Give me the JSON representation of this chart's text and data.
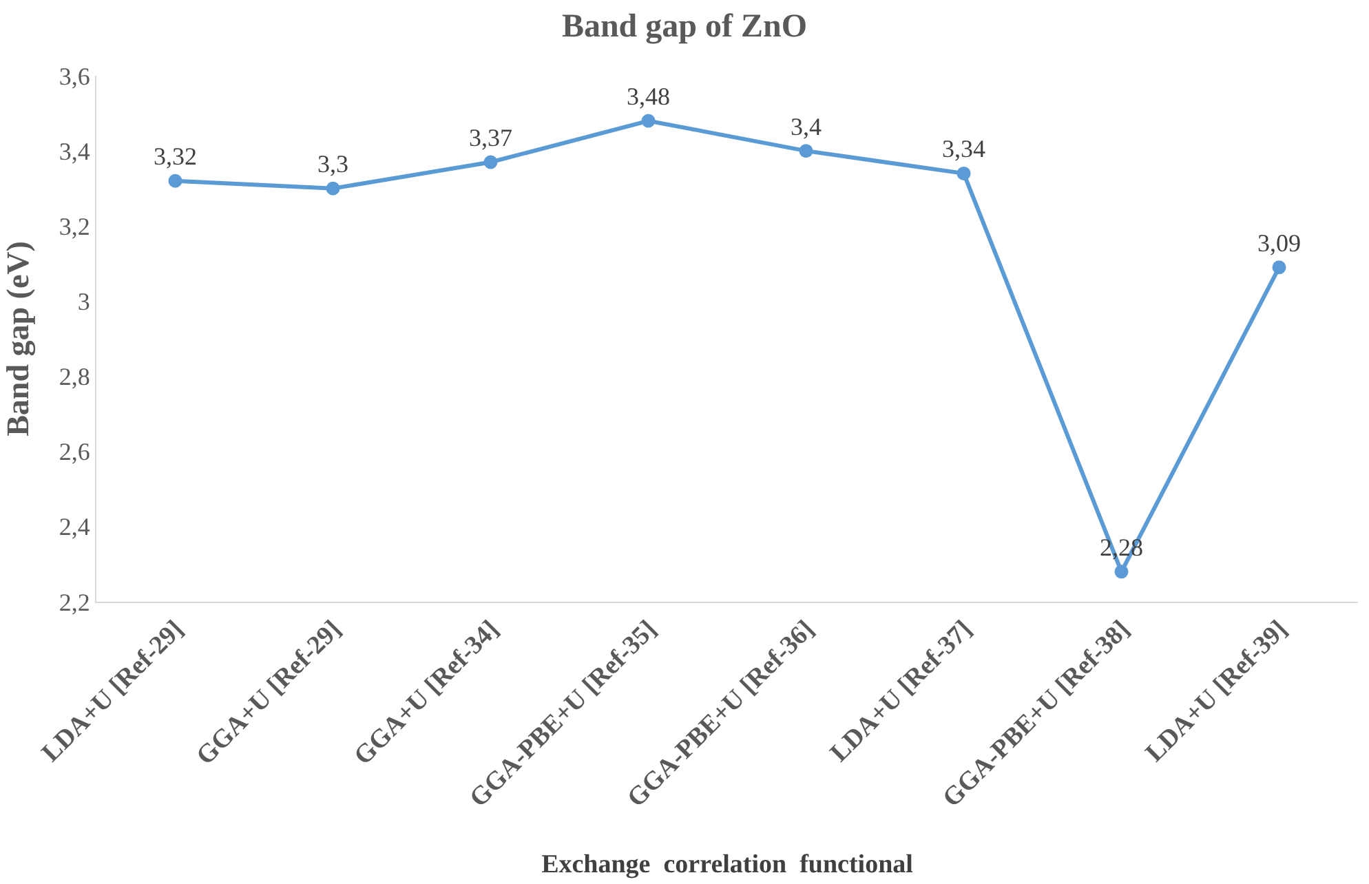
{
  "chart_data": {
    "type": "line",
    "title": "Band gap of ZnO",
    "xlabel": "Exchange  correlation  functional",
    "ylabel": "Band gap (eV)",
    "categories": [
      "LDA+U [Ref-29]",
      "GGA+U [Ref-29]",
      "GGA+U [Ref-34]",
      "GGA-PBE+U [Ref-35]",
      "GGA-PBE+U [Ref-36]",
      "LDA+U [Ref-37]",
      "GGA-PBE+U [Ref-38]",
      "LDA+U [Ref-39]"
    ],
    "series": [
      {
        "color": "#5b9bd5",
        "values": [
          3.32,
          3.3,
          3.37,
          3.48,
          3.4,
          3.34,
          2.28,
          3.09
        ],
        "value_labels": [
          "3,32",
          "3,3",
          "3,37",
          "3,48",
          "3,4",
          "3,34",
          "2,28",
          "3,09"
        ]
      }
    ],
    "ylim": [
      2.2,
      3.6
    ],
    "yticks": [
      {
        "value": 2.2,
        "label": "2,2"
      },
      {
        "value": 2.4,
        "label": "2,4"
      },
      {
        "value": 2.6,
        "label": "2,6"
      },
      {
        "value": 2.8,
        "label": "2,8"
      },
      3,
      {
        "value": 3.2,
        "label": "3,2"
      },
      {
        "value": 3.4,
        "label": "3,4"
      },
      {
        "value": 3.6,
        "label": "3,6"
      }
    ],
    "legend": false,
    "marker": "circle",
    "line_style": "solid"
  }
}
